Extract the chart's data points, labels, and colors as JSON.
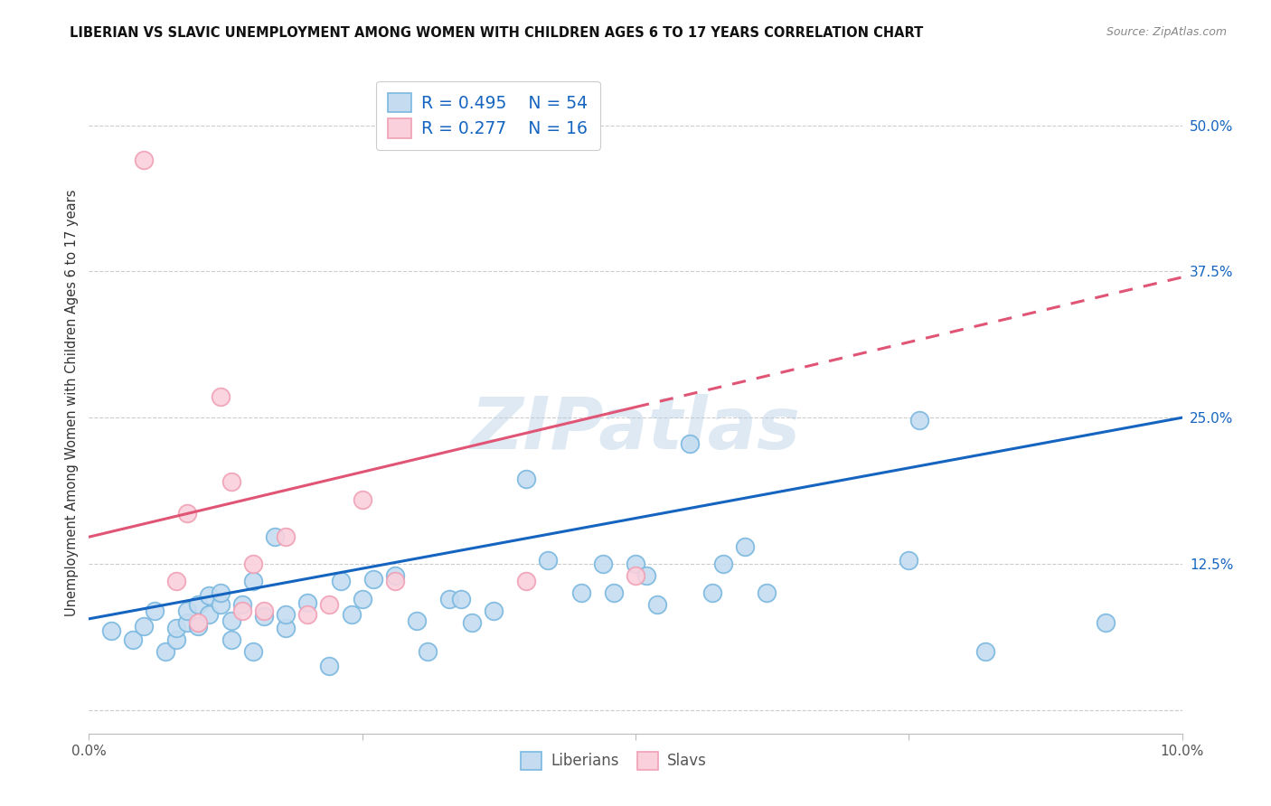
{
  "title": "LIBERIAN VS SLAVIC UNEMPLOYMENT AMONG WOMEN WITH CHILDREN AGES 6 TO 17 YEARS CORRELATION CHART",
  "source": "Source: ZipAtlas.com",
  "ylabel": "Unemployment Among Women with Children Ages 6 to 17 years",
  "xmin": 0.0,
  "xmax": 0.1,
  "ymin": -0.02,
  "ymax": 0.545,
  "y_ticks_right": [
    0.0,
    0.125,
    0.25,
    0.375,
    0.5
  ],
  "y_tick_labels_right": [
    "",
    "12.5%",
    "25.0%",
    "37.5%",
    "50.0%"
  ],
  "blue_color": "#7ab8e0",
  "blue_fill": "#c5dcf0",
  "pink_color": "#f0a0b5",
  "pink_fill": "#fad0dc",
  "trend_blue": "#1565c0",
  "trend_pink": "#e05575",
  "legend_R1": "R = 0.495",
  "legend_N1": "N = 54",
  "legend_R2": "R = 0.277",
  "legend_N2": "N = 16",
  "watermark": "ZIPatlas",
  "blue_x": [
    0.002,
    0.004,
    0.005,
    0.006,
    0.007,
    0.008,
    0.008,
    0.009,
    0.009,
    0.01,
    0.01,
    0.011,
    0.011,
    0.012,
    0.012,
    0.013,
    0.013,
    0.014,
    0.015,
    0.015,
    0.016,
    0.017,
    0.018,
    0.018,
    0.02,
    0.022,
    0.023,
    0.024,
    0.025,
    0.026,
    0.028,
    0.03,
    0.031,
    0.033,
    0.034,
    0.035,
    0.037,
    0.04,
    0.042,
    0.045,
    0.047,
    0.048,
    0.05,
    0.051,
    0.052,
    0.055,
    0.057,
    0.058,
    0.06,
    0.062,
    0.075,
    0.076,
    0.082,
    0.093
  ],
  "blue_y": [
    0.068,
    0.06,
    0.072,
    0.085,
    0.05,
    0.06,
    0.07,
    0.075,
    0.085,
    0.09,
    0.072,
    0.082,
    0.098,
    0.09,
    0.1,
    0.06,
    0.076,
    0.09,
    0.05,
    0.11,
    0.08,
    0.148,
    0.07,
    0.082,
    0.092,
    0.038,
    0.11,
    0.082,
    0.095,
    0.112,
    0.115,
    0.076,
    0.05,
    0.095,
    0.095,
    0.075,
    0.085,
    0.198,
    0.128,
    0.1,
    0.125,
    0.1,
    0.125,
    0.115,
    0.09,
    0.228,
    0.1,
    0.125,
    0.14,
    0.1,
    0.128,
    0.248,
    0.05,
    0.075
  ],
  "pink_x": [
    0.005,
    0.008,
    0.009,
    0.01,
    0.012,
    0.013,
    0.014,
    0.015,
    0.016,
    0.018,
    0.02,
    0.022,
    0.025,
    0.028,
    0.04,
    0.05
  ],
  "pink_y": [
    0.47,
    0.11,
    0.168,
    0.075,
    0.268,
    0.195,
    0.085,
    0.125,
    0.085,
    0.148,
    0.082,
    0.09,
    0.18,
    0.11,
    0.11,
    0.115
  ],
  "blue_trend_x0": 0.0,
  "blue_trend_y0": 0.078,
  "blue_trend_x1": 0.1,
  "blue_trend_y1": 0.25,
  "pink_trend_x0": 0.0,
  "pink_trend_y0": 0.148,
  "pink_trend_x1": 0.1,
  "pink_trend_y1": 0.37
}
